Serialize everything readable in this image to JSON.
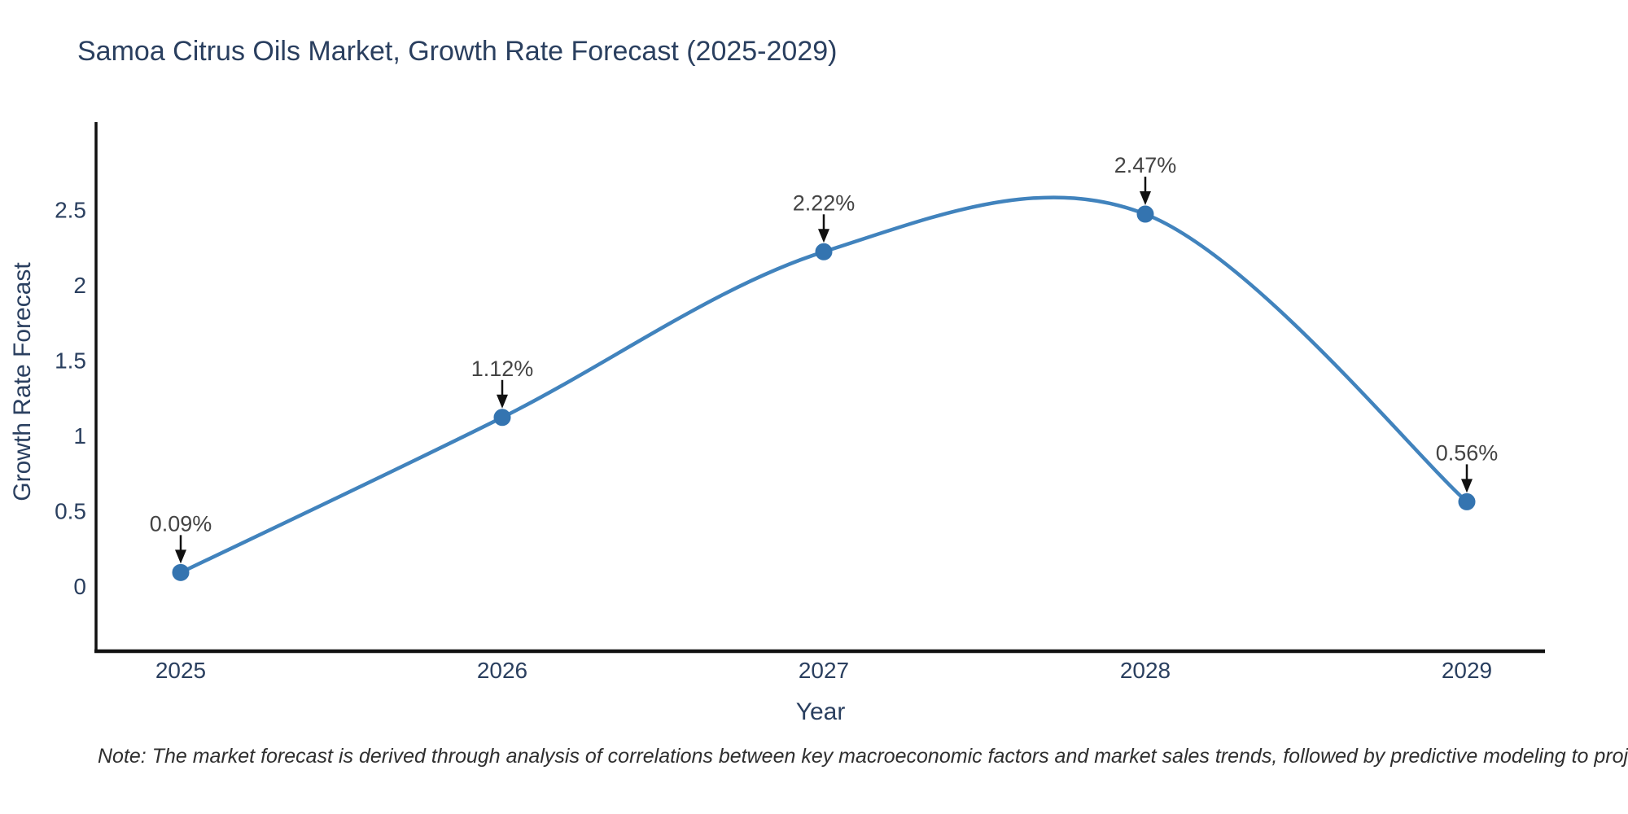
{
  "title": "Samoa Citrus Oils Market, Growth Rate Forecast (2025-2029)",
  "note": "Note: The market forecast is derived through analysis of correlations between key macroeconomic factors and market sales trends, followed by predictive modeling to project future sales",
  "chart_data": {
    "type": "line",
    "title": "Samoa Citrus Oils Market, Growth Rate Forecast (2025-2029)",
    "xlabel": "Year",
    "ylabel": "Growth Rate Forecast",
    "categories": [
      "2025",
      "2026",
      "2027",
      "2028",
      "2029"
    ],
    "values": [
      0.09,
      1.12,
      2.22,
      2.47,
      0.56
    ],
    "point_labels": [
      "0.09%",
      "1.12%",
      "2.22%",
      "2.47%",
      "0.56%"
    ],
    "series_name": "Growth Rate Forecast",
    "yticks": [
      0,
      0.5,
      1,
      1.5,
      2,
      2.5
    ],
    "ylim": [
      -0.43,
      3.08
    ],
    "line_shape": "spline",
    "grid": false,
    "legend_position": "none",
    "annotation_arrows": true,
    "colors": {
      "line": "#4183bd",
      "marker": "#3474b0",
      "axis": "#111111",
      "tick_text": "#2a3f5f",
      "title_text": "#2a3f5f",
      "annotation_text": "#444444",
      "note_text": "#2f2f2f",
      "background": "#ffffff"
    }
  }
}
